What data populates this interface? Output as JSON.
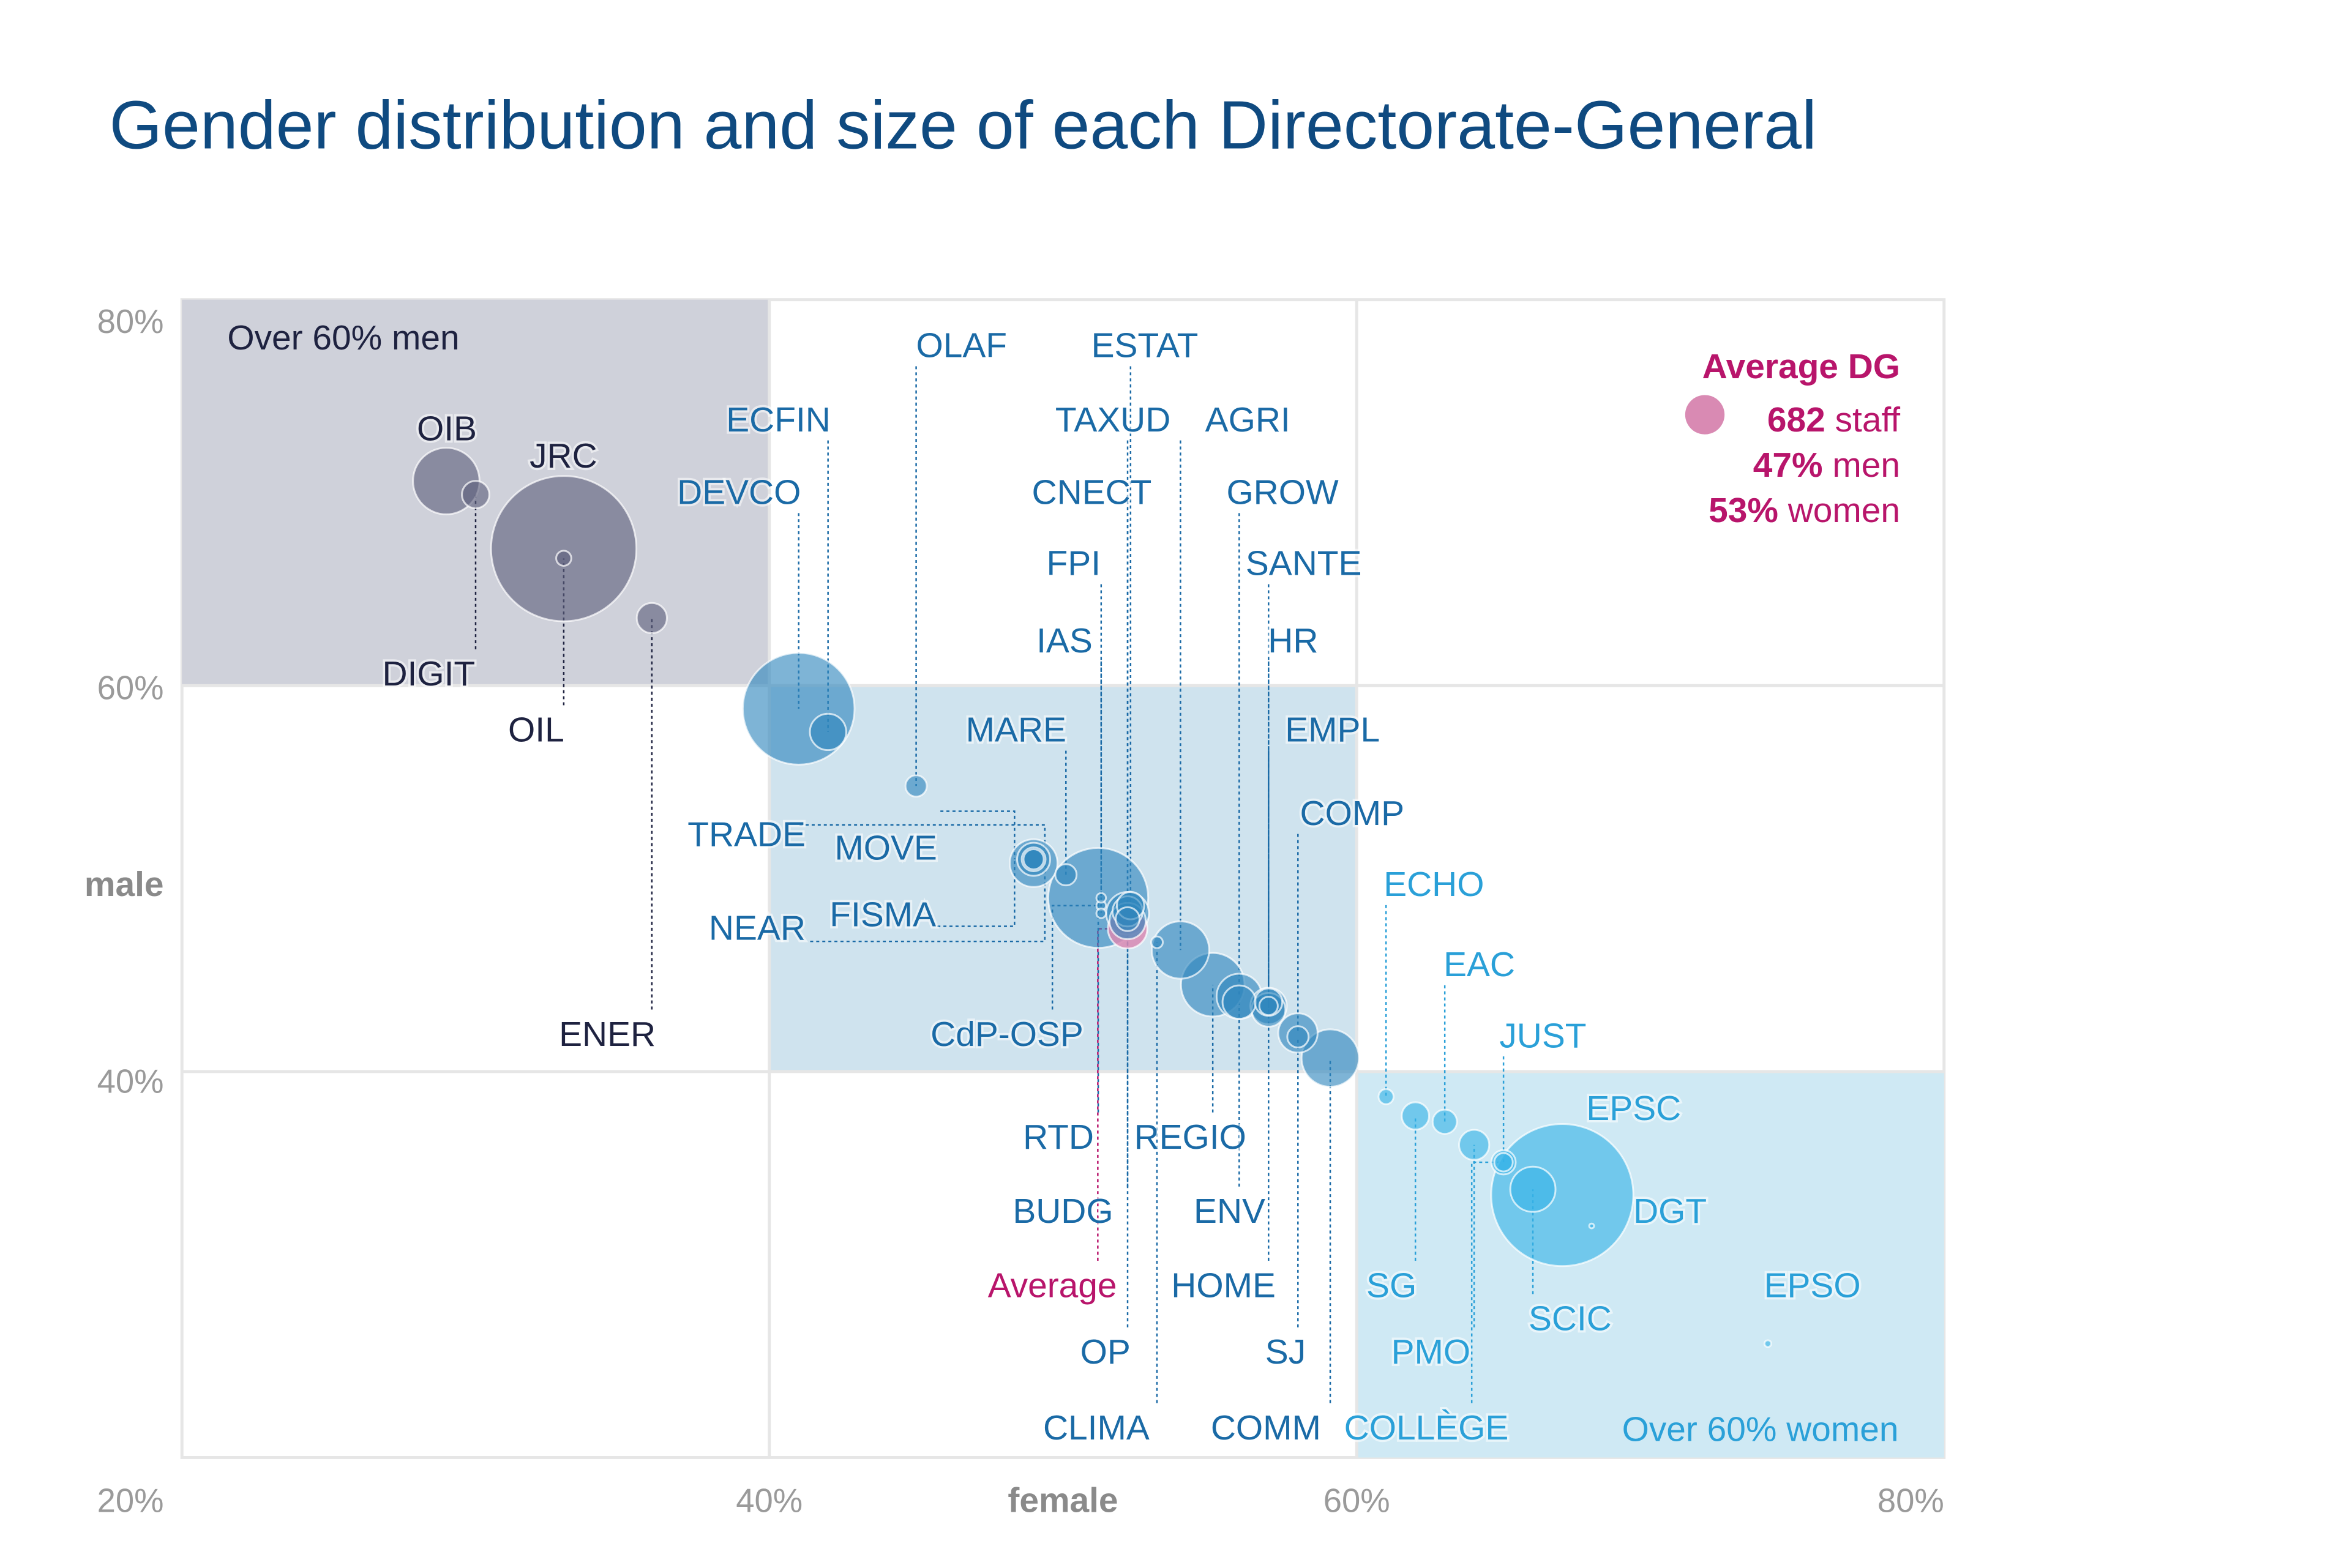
{
  "title": "Gender distribution and size of each Directorate-General",
  "colors": {
    "men_majority": "#5d607c",
    "balanced": "#2f86bd",
    "women_majority": "#37b3e6",
    "average": "#d98ab3",
    "average_text": "#b8156b",
    "men_label": "#1e2240",
    "balanced_label": "#1a6aa6",
    "women_label": "#2aa0d8"
  },
  "quadrants": {
    "men": "Over 60% men",
    "women": "Over 60% women"
  },
  "legend": {
    "title": "Average DG",
    "staff_value": "682",
    "staff_unit": " staff",
    "men_value": "47%",
    "men_unit": " men",
    "women_value": "53%",
    "women_unit": " women"
  },
  "chart_data": {
    "type": "scatter",
    "title": "Gender distribution and size of each Directorate-General",
    "xlabel": "female",
    "ylabel": "male",
    "xlim": [
      20,
      80
    ],
    "ylim": [
      20,
      80
    ],
    "x_ticks": [
      "20%",
      "40%",
      "60%",
      "80%"
    ],
    "y_ticks": [
      "80%",
      "60%",
      "40%"
    ],
    "grid": true,
    "bubble_size": "staff",
    "legend_position": "top-right",
    "points": [
      {
        "name": "JRC",
        "female": 33.0,
        "male": 67.1,
        "staff": 9300
      },
      {
        "name": "DGT",
        "female": 67.0,
        "male": 33.6,
        "staff": 8900
      },
      {
        "name": "DEVCO",
        "female": 41.0,
        "male": 58.8,
        "staff": 5500
      },
      {
        "name": "RTD",
        "female": 51.2,
        "male": 49.0,
        "staff": 4400
      },
      {
        "name": "OIB",
        "female": 29.0,
        "male": 70.6,
        "staff": 1950
      },
      {
        "name": "REGIO",
        "female": 55.1,
        "male": 44.5,
        "staff": 1780
      },
      {
        "name": "AGRI",
        "female": 54.0,
        "male": 46.3,
        "staff": 1450
      },
      {
        "name": "COMM",
        "female": 59.1,
        "male": 40.7,
        "staff": 1450
      },
      {
        "name": "TRADE",
        "female": 49.0,
        "male": 50.8,
        "staff": 1000
      },
      {
        "name": "GROW",
        "female": 56.0,
        "male": 43.9,
        "staff": 900
      },
      {
        "name": "SCIC",
        "female": 66.0,
        "male": 33.9,
        "staff": 900
      },
      {
        "name": "CNECT",
        "female": 52.2,
        "male": 48.2,
        "staff": 800
      },
      {
        "name": "Average",
        "female": 52.2,
        "male": 47.4,
        "staff": 682
      },
      {
        "name": "COMP",
        "female": 58.0,
        "male": 42.0,
        "staff": 680
      },
      {
        "name": "ECFIN",
        "female": 42.0,
        "male": 57.6,
        "staff": 580
      },
      {
        "name": "OP",
        "female": 52.2,
        "male": 47.8,
        "staff": 580
      },
      {
        "name": "SANTE",
        "female": 57.0,
        "male": 43.4,
        "staff": 580
      },
      {
        "name": "EMPL",
        "female": 57.0,
        "male": 43.2,
        "staff": 500
      },
      {
        "name": "NEAR",
        "female": 49.0,
        "male": 51.0,
        "staff": 480
      },
      {
        "name": "ENV",
        "female": 56.0,
        "male": 43.6,
        "staff": 490
      },
      {
        "name": "ENER",
        "female": 36.0,
        "male": 63.5,
        "staff": 400
      },
      {
        "name": "BUDG",
        "female": 52.2,
        "male": 48.3,
        "staff": 400
      },
      {
        "name": "PMO",
        "female": 64.0,
        "male": 36.2,
        "staff": 400
      },
      {
        "name": "ESTAT",
        "female": 52.3,
        "male": 48.6,
        "staff": 330
      },
      {
        "name": "DIGIT",
        "female": 30.0,
        "male": 69.9,
        "staff": 330
      },
      {
        "name": "HR",
        "female": 57.0,
        "male": 43.6,
        "staff": 330
      },
      {
        "name": "SG",
        "female": 62.0,
        "male": 37.7,
        "staff": 330
      },
      {
        "name": "MOVE",
        "female": 49.0,
        "male": 51.0,
        "staff": 250
      },
      {
        "name": "TAXUD",
        "female": 52.2,
        "male": 47.9,
        "staff": 250
      },
      {
        "name": "EAC",
        "female": 63.0,
        "male": 37.4,
        "staff": 260
      },
      {
        "name": "JUST",
        "female": 65.0,
        "male": 35.3,
        "staff": 260
      },
      {
        "name": "FISMA",
        "female": 49.0,
        "male": 51.0,
        "staff": 180
      },
      {
        "name": "OLAF",
        "female": 45.0,
        "male": 54.8,
        "staff": 200
      },
      {
        "name": "MARE",
        "female": 50.1,
        "male": 50.2,
        "staff": 200
      },
      {
        "name": "SJ",
        "female": 58.0,
        "male": 41.8,
        "staff": 200
      },
      {
        "name": "HOME",
        "female": 57.0,
        "male": 43.4,
        "staff": 150
      },
      {
        "name": "COLLÈGE",
        "female": 65.0,
        "male": 35.3,
        "staff": 150
      },
      {
        "name": "OIL",
        "female": 33.0,
        "male": 66.6,
        "staff": 100
      },
      {
        "name": "ECHO",
        "female": 61.0,
        "male": 38.7,
        "staff": 100
      },
      {
        "name": "CLIMA",
        "female": 53.2,
        "male": 46.7,
        "staff": 60
      },
      {
        "name": "CdP-OSP",
        "female": 51.3,
        "male": 48.6,
        "staff": 40
      },
      {
        "name": "FPI",
        "female": 51.3,
        "male": 49.0,
        "staff": 40
      },
      {
        "name": "IAS",
        "female": 51.3,
        "male": 48.2,
        "staff": 40
      },
      {
        "name": "EPSO",
        "female": 74.0,
        "male": 25.9,
        "staff": 20
      },
      {
        "name": "EPSC",
        "female": 68.0,
        "male": 32.0,
        "staff": 10
      }
    ]
  }
}
